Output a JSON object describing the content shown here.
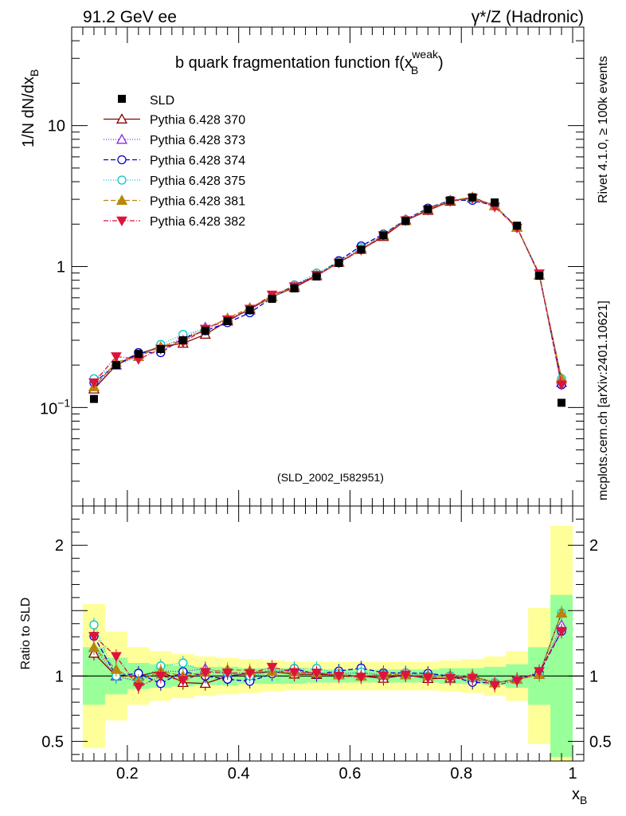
{
  "header": {
    "left": "91.2 GeV ee",
    "right": "γ*/Z (Hadronic)"
  },
  "side": {
    "rivet": "Rivet 4.1.0, ≥ 100k events",
    "mcplots": "mcplots.cern.ch [arXiv:2401.10621]"
  },
  "chart_data": {
    "type": "line",
    "title": "b quark fragmentation function f(x_B^weak)",
    "title_main": "b quark fragmentation function f(x",
    "title_sub": "B",
    "title_sup": "weak",
    "title_end": ")",
    "ylabel": "1/N  dN/dx",
    "ylabel_sub": "B",
    "xlabel": "x",
    "xlabel_sub": "B",
    "ratio_ylabel": "Ratio to SLD",
    "analysis_id": "(SLD_2002_I582951)",
    "xlim": [
      0.1,
      1.02
    ],
    "ylim": [
      0.02,
      50
    ],
    "yscale": "log",
    "ratio_ylim": [
      0.35,
      2.3
    ],
    "main_ticks": [
      "10",
      "1"
    ],
    "main_tick_exp": [
      "10",
      "−1"
    ],
    "ratio_ticks": [
      "2",
      "1",
      "0.5"
    ],
    "x_ticks": [
      "0.2",
      "0.4",
      "0.6",
      "0.8",
      "1"
    ],
    "x": [
      0.14,
      0.18,
      0.22,
      0.26,
      0.3,
      0.34,
      0.38,
      0.42,
      0.46,
      0.5,
      0.54,
      0.58,
      0.62,
      0.66,
      0.7,
      0.74,
      0.78,
      0.82,
      0.86,
      0.9,
      0.94,
      0.98
    ],
    "data": {
      "name": "SLD",
      "values": [
        0.115,
        0.2,
        0.24,
        0.26,
        0.3,
        0.35,
        0.41,
        0.49,
        0.59,
        0.7,
        0.85,
        1.06,
        1.32,
        1.66,
        2.1,
        2.55,
        2.95,
        3.1,
        2.85,
        1.95,
        0.86,
        0.108
      ],
      "band_inner": [
        0.22,
        0.14,
        0.1,
        0.09,
        0.08,
        0.07,
        0.07,
        0.06,
        0.06,
        0.06,
        0.05,
        0.05,
        0.05,
        0.05,
        0.05,
        0.05,
        0.06,
        0.06,
        0.07,
        0.09,
        0.22,
        0.62
      ],
      "band_outer": [
        0.55,
        0.34,
        0.22,
        0.19,
        0.17,
        0.15,
        0.14,
        0.13,
        0.12,
        0.11,
        0.11,
        0.11,
        0.11,
        0.11,
        0.11,
        0.11,
        0.12,
        0.13,
        0.15,
        0.19,
        0.52,
        1.15
      ]
    },
    "series": [
      {
        "name": "Pythia 6.428 370",
        "color": "#8b0000",
        "dash": "",
        "marker": "triangle-open",
        "values": [
          0.135,
          0.2,
          0.24,
          0.27,
          0.285,
          0.33,
          0.41,
          0.5,
          0.61,
          0.71,
          0.86,
          1.07,
          1.32,
          1.63,
          2.12,
          2.5,
          2.9,
          3.1,
          2.7,
          1.9,
          0.87,
          0.16
        ]
      },
      {
        "name": "Pythia 6.428 373",
        "color": "#8a2be2",
        "dash": "1,2",
        "marker": "triangle-open",
        "values": [
          0.14,
          0.2,
          0.23,
          0.27,
          0.31,
          0.37,
          0.42,
          0.49,
          0.61,
          0.73,
          0.87,
          1.08,
          1.35,
          1.67,
          2.15,
          2.55,
          2.95,
          3.05,
          2.7,
          1.9,
          0.87,
          0.15
        ]
      },
      {
        "name": "Pythia 6.428 374",
        "color": "#0000cd",
        "dash": "6,3",
        "marker": "circle-open",
        "values": [
          0.15,
          0.2,
          0.245,
          0.245,
          0.31,
          0.35,
          0.4,
          0.47,
          0.6,
          0.74,
          0.86,
          1.1,
          1.4,
          1.7,
          2.15,
          2.6,
          2.95,
          2.95,
          2.7,
          1.9,
          0.88,
          0.145
        ]
      },
      {
        "name": "Pythia 6.428 375",
        "color": "#00c5cd",
        "dash": "1,2",
        "marker": "circle-open",
        "values": [
          0.16,
          0.2,
          0.23,
          0.28,
          0.33,
          0.36,
          0.42,
          0.49,
          0.61,
          0.74,
          0.9,
          1.08,
          1.36,
          1.68,
          2.15,
          2.55,
          2.95,
          3.05,
          2.7,
          1.9,
          0.87,
          0.16
        ]
      },
      {
        "name": "Pythia 6.428 381",
        "color": "#b8860b",
        "dash": "6,3",
        "marker": "triangle-filled",
        "values": [
          0.14,
          0.21,
          0.23,
          0.27,
          0.3,
          0.36,
          0.43,
          0.51,
          0.61,
          0.72,
          0.87,
          1.07,
          1.32,
          1.68,
          2.12,
          2.55,
          2.95,
          3.1,
          2.7,
          1.9,
          0.87,
          0.16
        ]
      },
      {
        "name": "Pythia 6.428 382",
        "color": "#dc143c",
        "dash": "6,2,1,2",
        "marker": "triangle-down-filled",
        "values": [
          0.15,
          0.23,
          0.22,
          0.26,
          0.29,
          0.36,
          0.42,
          0.5,
          0.63,
          0.72,
          0.87,
          1.06,
          1.31,
          1.66,
          2.12,
          2.52,
          2.9,
          3.05,
          2.65,
          1.88,
          0.89,
          0.145
        ]
      }
    ]
  }
}
